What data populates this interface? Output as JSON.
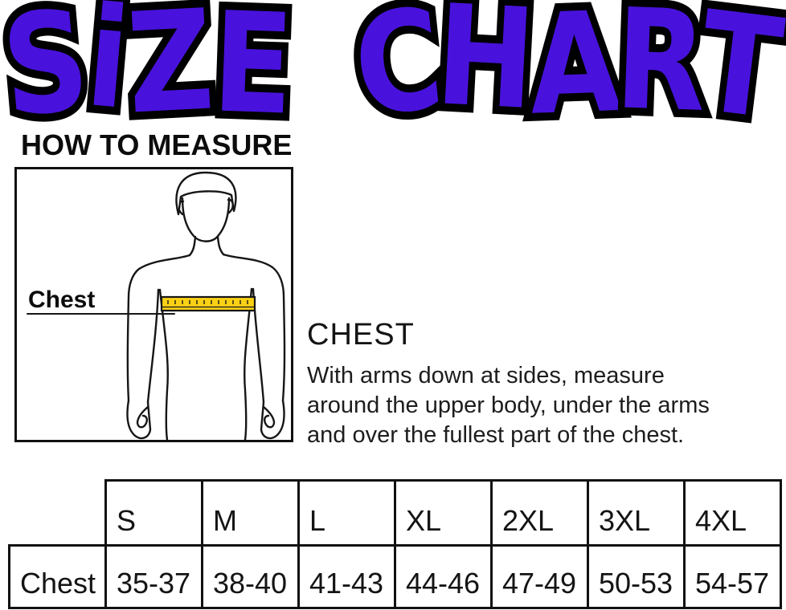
{
  "title": {
    "word1": "SiZE",
    "word2": "CHART",
    "fill_color": "#4812DC",
    "outline_color": "#000000"
  },
  "sections": {
    "how_to_measure_heading": "HOW TO MEASURE"
  },
  "figure": {
    "label": "Chest",
    "tape_color": "#FBD116"
  },
  "instructions": {
    "heading": "CHEST",
    "lines": [
      "With arms down at sides, measure",
      "around the upper body, under the arms",
      "and over the fullest part of the chest."
    ]
  },
  "chart_data": {
    "type": "table",
    "title": "SiZE CHART",
    "columns": [
      "S",
      "M",
      "L",
      "XL",
      "2XL",
      "3XL",
      "4XL"
    ],
    "rows": [
      {
        "label": "Chest",
        "values": [
          "35-37",
          "38-40",
          "41-43",
          "44-46",
          "47-49",
          "50-53",
          "54-57"
        ]
      }
    ]
  }
}
